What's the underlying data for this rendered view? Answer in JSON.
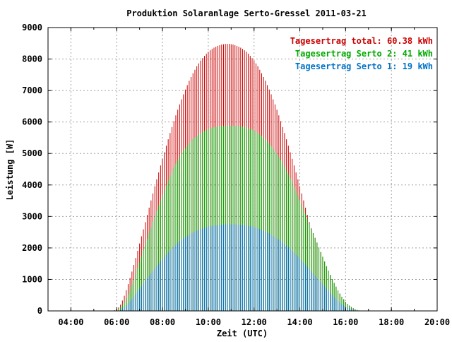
{
  "chart_data": {
    "type": "bar",
    "title": "Produktion Solaranlage Serto-Gressel 2011-03-21",
    "xlabel": "Zeit (UTC)",
    "ylabel": "Leistung [W]",
    "xlim": [
      "03:00",
      "20:00"
    ],
    "ylim": [
      0,
      9000
    ],
    "x_ticks": [
      "04:00",
      "06:00",
      "08:00",
      "10:00",
      "12:00",
      "14:00",
      "16:00",
      "18:00",
      "20:00"
    ],
    "y_ticks": [
      "0",
      "1000",
      "2000",
      "3000",
      "4000",
      "5000",
      "6000",
      "7000",
      "8000",
      "9000"
    ],
    "grid": true,
    "legend_position": "top-right",
    "series": [
      {
        "name": "Tagesertrag total: 60.38 kWh",
        "color": "#cc0000"
      },
      {
        "name": "Tagesertrag Serto 2: 41 kWh",
        "color": "#00aa00"
      },
      {
        "name": "Tagesertrag Serto 1: 19 kWh",
        "color": "#0072c6"
      }
    ],
    "stack_order": [
      "Serto 1",
      "Serto 2"
    ],
    "interval_minutes": 5,
    "x": [
      "05:50",
      "05:55",
      "06:00",
      "06:05",
      "06:10",
      "06:15",
      "06:20",
      "06:25",
      "06:30",
      "06:35",
      "06:40",
      "06:45",
      "06:50",
      "06:55",
      "07:00",
      "07:05",
      "07:10",
      "07:15",
      "07:20",
      "07:25",
      "07:30",
      "07:35",
      "07:40",
      "07:45",
      "07:50",
      "07:55",
      "08:00",
      "08:05",
      "08:10",
      "08:15",
      "08:20",
      "08:25",
      "08:30",
      "08:35",
      "08:40",
      "08:45",
      "08:50",
      "08:55",
      "09:00",
      "09:05",
      "09:10",
      "09:15",
      "09:20",
      "09:25",
      "09:30",
      "09:35",
      "09:40",
      "09:45",
      "09:50",
      "09:55",
      "10:00",
      "10:05",
      "10:10",
      "10:15",
      "10:20",
      "10:25",
      "10:30",
      "10:35",
      "10:40",
      "10:45",
      "10:50",
      "10:55",
      "11:00",
      "11:05",
      "11:10",
      "11:15",
      "11:20",
      "11:25",
      "11:30",
      "11:35",
      "11:40",
      "11:45",
      "11:50",
      "11:55",
      "12:00",
      "12:05",
      "12:10",
      "12:15",
      "12:20",
      "12:25",
      "12:30",
      "12:35",
      "12:40",
      "12:45",
      "12:50",
      "12:55",
      "13:00",
      "13:05",
      "13:10",
      "13:15",
      "13:20",
      "13:25",
      "13:30",
      "13:35",
      "13:40",
      "13:45",
      "13:50",
      "13:55",
      "14:00",
      "14:05",
      "14:10",
      "14:15",
      "14:20",
      "14:25",
      "14:30",
      "14:35",
      "14:40",
      "14:45",
      "14:50",
      "14:55",
      "15:00",
      "15:05",
      "15:10",
      "15:15",
      "15:20",
      "15:25",
      "15:30",
      "15:35",
      "15:40",
      "15:45",
      "15:50",
      "15:55",
      "16:00",
      "16:05",
      "16:10",
      "16:15",
      "16:20",
      "16:25",
      "16:30",
      "16:35",
      "16:40",
      "16:45",
      "16:50",
      "16:55",
      "17:00",
      "17:05",
      "17:10",
      "17:15",
      "17:20",
      "17:25"
    ],
    "serto1_values": [
      0,
      0,
      10,
      20,
      40,
      80,
      120,
      180,
      240,
      310,
      380,
      460,
      540,
      620,
      700,
      780,
      870,
      950,
      1030,
      1110,
      1190,
      1270,
      1350,
      1430,
      1500,
      1580,
      1650,
      1720,
      1790,
      1860,
      1920,
      1990,
      2050,
      2110,
      2160,
      2210,
      2260,
      2300,
      2340,
      2380,
      2420,
      2460,
      2490,
      2520,
      2550,
      2580,
      2600,
      2620,
      2640,
      2660,
      2680,
      2690,
      2700,
      2710,
      2720,
      2730,
      2735,
      2740,
      2745,
      2750,
      2750,
      2750,
      2750,
      2750,
      2750,
      2745,
      2740,
      2735,
      2730,
      2720,
      2710,
      2700,
      2690,
      2680,
      2660,
      2640,
      2620,
      2600,
      2580,
      2550,
      2520,
      2490,
      2460,
      2420,
      2380,
      2340,
      2300,
      2260,
      2220,
      2170,
      2120,
      2070,
      2020,
      1970,
      1910,
      1850,
      1790,
      1730,
      1670,
      1610,
      1540,
      1470,
      1400,
      1330,
      1260,
      1190,
      1120,
      1050,
      980,
      910,
      840,
      770,
      700,
      630,
      560,
      500,
      440,
      380,
      320,
      270,
      220,
      180,
      140,
      110,
      85,
      65,
      45,
      30,
      18,
      8,
      3,
      0,
      0,
      0,
      0,
      0,
      0,
      0,
      0,
      0
    ],
    "serto2_values": [
      0,
      10,
      20,
      40,
      70,
      110,
      160,
      220,
      290,
      370,
      450,
      540,
      640,
      740,
      840,
      950,
      1050,
      1160,
      1260,
      1370,
      1470,
      1570,
      1670,
      1760,
      1860,
      1950,
      2040,
      2120,
      2200,
      2280,
      2360,
      2430,
      2500,
      2560,
      2620,
      2680,
      2730,
      2780,
      2820,
      2860,
      2900,
      2930,
      2960,
      2990,
      3010,
      3030,
      3050,
      3070,
      3080,
      3090,
      3100,
      3110,
      3115,
      3120,
      3125,
      3130,
      3130,
      3130,
      3130,
      3130,
      3130,
      3130,
      3130,
      3130,
      3130,
      3130,
      3130,
      3125,
      3120,
      3115,
      3110,
      3100,
      3090,
      3080,
      3070,
      3050,
      3030,
      3010,
      2990,
      2960,
      2930,
      2900,
      2860,
      2820,
      2780,
      2730,
      2680,
      2630,
      2570,
      2510,
      2450,
      2380,
      2310,
      2240,
      2170,
      2090,
      2010,
      1930,
      1850,
      1770,
      1690,
      1610,
      1520,
      1440,
      1360,
      1280,
      1200,
      1120,
      1040,
      960,
      880,
      800,
      720,
      650,
      580,
      510,
      450,
      390,
      330,
      280,
      230,
      190,
      150,
      115,
      85,
      60,
      40,
      25,
      13,
      5,
      0,
      0,
      0,
      0,
      0,
      0,
      0,
      0,
      0,
      0
    ],
    "total_values": [
      0,
      20,
      50,
      110,
      200,
      330,
      480,
      660,
      850,
      1050,
      1250,
      1460,
      1680,
      1910,
      2140,
      2370,
      2590,
      2820,
      3050,
      3280,
      3510,
      3730,
      3960,
      4180,
      4400,
      4620,
      4830,
      5040,
      5250,
      5450,
      5650,
      5840,
      6030,
      6210,
      6390,
      6560,
      6720,
      6880,
      7030,
      7170,
      7310,
      7430,
      7550,
      7660,
      7770,
      7860,
      7950,
      8030,
      8100,
      8170,
      8230,
      8280,
      8320,
      8360,
      8390,
      8420,
      8440,
      8460,
      8470,
      8480,
      8480,
      8480,
      8470,
      8460,
      8440,
      8420,
      8390,
      8360,
      8320,
      8280,
      8230,
      8170,
      8100,
      8030,
      7950,
      7860,
      7770,
      7660,
      7550,
      7430,
      7310,
      7170,
      7030,
      6880,
      6720,
      6560,
      6390,
      6210,
      6030,
      5840,
      5650,
      5450,
      5250,
      5040,
      4830,
      4620,
      4400,
      4180,
      3960,
      3730,
      3510,
      3280,
      3050,
      2820,
      2590,
      2370,
      2140,
      1910,
      1680,
      1460,
      1250,
      1050,
      850,
      660,
      480,
      330,
      200,
      110,
      50,
      20,
      5,
      0,
      0,
      0,
      0,
      0,
      0,
      0,
      0,
      0,
      0,
      0,
      0,
      0,
      0,
      0,
      0,
      0,
      0,
      0,
      0,
      0
    ]
  }
}
